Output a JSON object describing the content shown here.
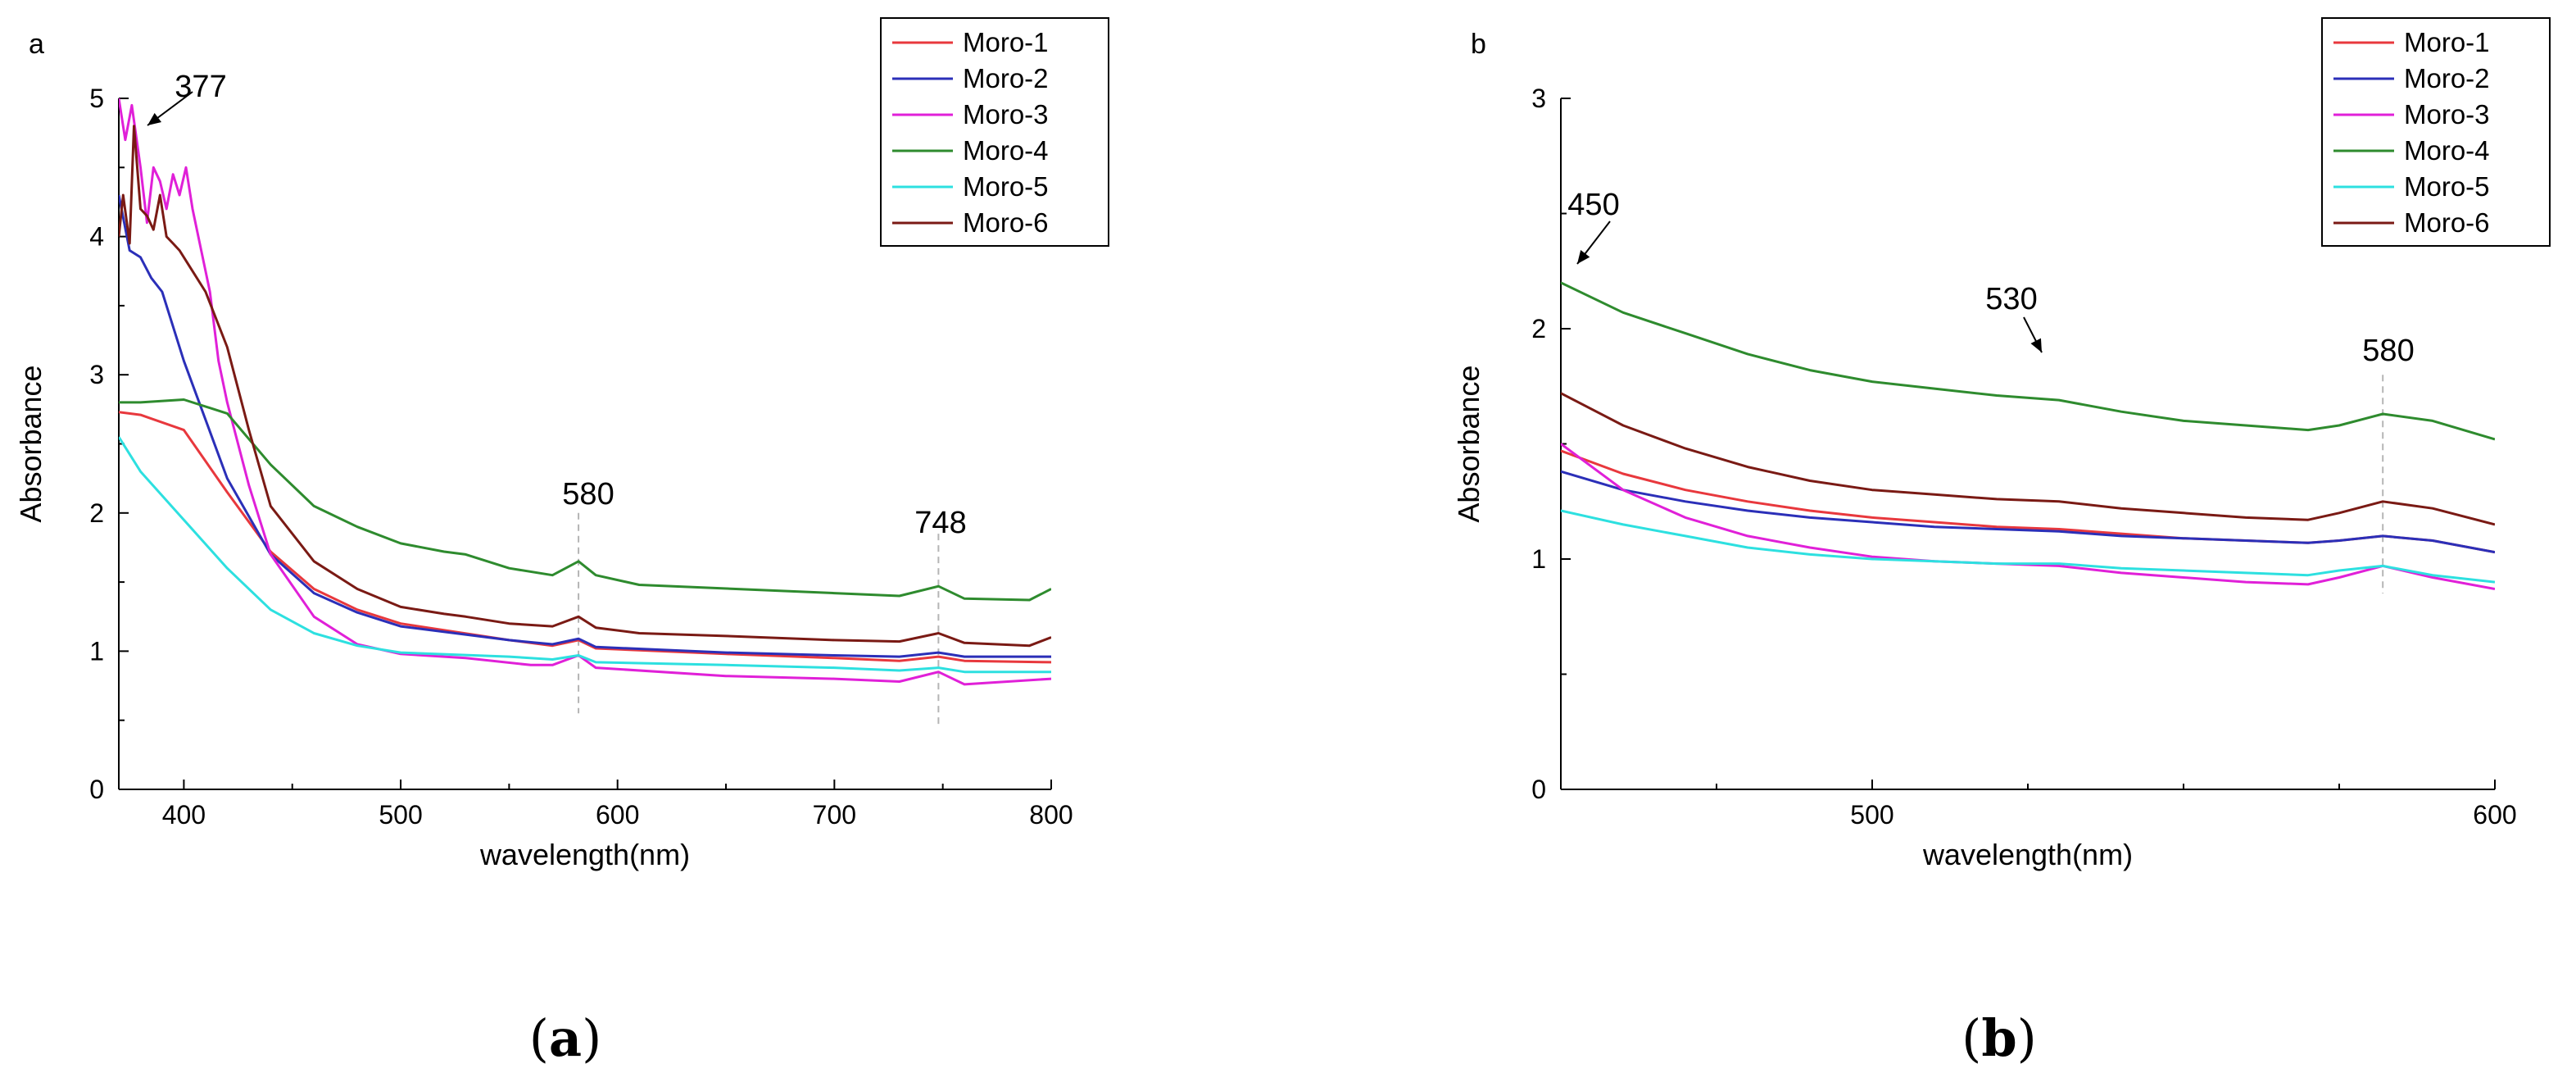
{
  "chart_data": [
    {
      "type": "line",
      "panel_label": "a",
      "caption": {
        "open": "(",
        "letter": "a",
        "close": ")"
      },
      "xlabel": "wavelength(nm)",
      "ylabel": "Absorbance",
      "xlim": [
        370,
        800
      ],
      "ylim": [
        0,
        5
      ],
      "xticks": [
        400,
        500,
        600,
        700,
        800
      ],
      "yticks": [
        0,
        1,
        2,
        3,
        4,
        5
      ],
      "legend_position": "top-right",
      "series": [
        {
          "name": "Moro-1",
          "color": "#e8383d",
          "x": [
            370,
            380,
            400,
            420,
            440,
            460,
            480,
            500,
            550,
            570,
            582,
            590,
            650,
            700,
            730,
            748,
            760,
            800
          ],
          "y": [
            2.73,
            2.71,
            2.6,
            2.15,
            1.72,
            1.45,
            1.3,
            1.2,
            1.08,
            1.04,
            1.08,
            1.02,
            0.98,
            0.95,
            0.93,
            0.96,
            0.93,
            0.92
          ]
        },
        {
          "name": "Moro-2",
          "color": "#2b2fb8",
          "x": [
            370,
            375,
            380,
            385,
            390,
            400,
            420,
            440,
            460,
            480,
            500,
            550,
            570,
            582,
            590,
            650,
            700,
            730,
            748,
            760,
            800
          ],
          "y": [
            4.3,
            3.9,
            3.85,
            3.7,
            3.6,
            3.1,
            2.25,
            1.7,
            1.42,
            1.28,
            1.18,
            1.08,
            1.05,
            1.09,
            1.03,
            0.99,
            0.97,
            0.96,
            0.99,
            0.96,
            0.96
          ]
        },
        {
          "name": "Moro-3",
          "color": "#e020d8",
          "x": [
            370,
            373,
            376,
            380,
            383,
            386,
            389,
            392,
            395,
            398,
            401,
            404,
            408,
            412,
            416,
            420,
            430,
            440,
            460,
            480,
            500,
            530,
            560,
            570,
            582,
            590,
            650,
            700,
            730,
            748,
            760,
            800
          ],
          "y": [
            5.0,
            4.7,
            4.95,
            4.5,
            4.1,
            4.5,
            4.4,
            4.2,
            4.45,
            4.3,
            4.5,
            4.2,
            3.9,
            3.6,
            3.1,
            2.8,
            2.2,
            1.7,
            1.25,
            1.05,
            0.98,
            0.95,
            0.9,
            0.9,
            0.97,
            0.88,
            0.82,
            0.8,
            0.78,
            0.85,
            0.76,
            0.8
          ]
        },
        {
          "name": "Moro-4",
          "color": "#2e8b2e",
          "x": [
            370,
            380,
            400,
            420,
            440,
            460,
            480,
            500,
            520,
            530,
            550,
            570,
            582,
            590,
            610,
            700,
            730,
            748,
            760,
            790,
            800
          ],
          "y": [
            2.8,
            2.8,
            2.82,
            2.72,
            2.35,
            2.05,
            1.9,
            1.78,
            1.72,
            1.7,
            1.6,
            1.55,
            1.65,
            1.55,
            1.48,
            1.42,
            1.4,
            1.47,
            1.38,
            1.37,
            1.45
          ]
        },
        {
          "name": "Moro-5",
          "color": "#2de0e0",
          "x": [
            370,
            380,
            400,
            420,
            440,
            460,
            480,
            500,
            550,
            570,
            582,
            590,
            650,
            700,
            730,
            748,
            760,
            800
          ],
          "y": [
            2.55,
            2.3,
            1.95,
            1.6,
            1.3,
            1.13,
            1.04,
            0.99,
            0.96,
            0.94,
            0.97,
            0.92,
            0.9,
            0.88,
            0.86,
            0.88,
            0.85,
            0.85
          ]
        },
        {
          "name": "Moro-6",
          "color": "#7a1a14",
          "x": [
            370,
            372,
            375,
            377,
            380,
            383,
            386,
            389,
            392,
            395,
            398,
            402,
            410,
            420,
            430,
            440,
            460,
            480,
            500,
            520,
            530,
            550,
            570,
            582,
            590,
            610,
            650,
            700,
            730,
            748,
            760,
            790,
            800
          ],
          "y": [
            4.0,
            4.3,
            3.95,
            4.8,
            4.2,
            4.15,
            4.05,
            4.3,
            4.0,
            3.95,
            3.9,
            3.8,
            3.6,
            3.2,
            2.6,
            2.05,
            1.65,
            1.45,
            1.32,
            1.27,
            1.25,
            1.2,
            1.18,
            1.25,
            1.17,
            1.13,
            1.11,
            1.08,
            1.07,
            1.13,
            1.06,
            1.04,
            1.1
          ]
        }
      ],
      "annotations": [
        {
          "text": "377",
          "x": 377,
          "y": 4.8,
          "kind": "arrow"
        },
        {
          "text": "580",
          "x": 582,
          "kind": "dashed-line",
          "y_range": [
            0.55,
            2.0
          ]
        },
        {
          "text": "748",
          "x": 748,
          "kind": "dashed-line",
          "y_range": [
            0.45,
            1.85
          ]
        }
      ]
    },
    {
      "type": "line",
      "panel_label": "b",
      "caption": {
        "open": "(",
        "letter": "b",
        "close": ")"
      },
      "xlabel": "wavelength(nm)",
      "ylabel": "Absorbance",
      "xlim": [
        450,
        600
      ],
      "ylim": [
        0,
        3
      ],
      "xticks": [
        500,
        600
      ],
      "xticks_minor": [
        475,
        525,
        550,
        575
      ],
      "yticks": [
        0,
        1,
        2,
        3
      ],
      "legend_position": "top-right",
      "series": [
        {
          "name": "Moro-1",
          "color": "#e8383d",
          "x": [
            450,
            460,
            470,
            480,
            490,
            500,
            510,
            520,
            530,
            540,
            550,
            560,
            570,
            575,
            582,
            590,
            600
          ],
          "y": [
            1.47,
            1.37,
            1.3,
            1.25,
            1.21,
            1.18,
            1.16,
            1.14,
            1.13,
            1.11,
            1.09,
            1.08,
            1.07,
            1.08,
            1.1,
            1.08,
            1.03
          ]
        },
        {
          "name": "Moro-2",
          "color": "#2b2fb8",
          "x": [
            450,
            460,
            470,
            480,
            490,
            500,
            510,
            520,
            530,
            540,
            550,
            560,
            570,
            575,
            582,
            590,
            600
          ],
          "y": [
            1.38,
            1.3,
            1.25,
            1.21,
            1.18,
            1.16,
            1.14,
            1.13,
            1.12,
            1.1,
            1.09,
            1.08,
            1.07,
            1.08,
            1.1,
            1.08,
            1.03
          ]
        },
        {
          "name": "Moro-3",
          "color": "#e020d8",
          "x": [
            450,
            460,
            470,
            480,
            490,
            500,
            510,
            520,
            530,
            540,
            550,
            560,
            570,
            575,
            582,
            590,
            600
          ],
          "y": [
            1.5,
            1.3,
            1.18,
            1.1,
            1.05,
            1.01,
            0.99,
            0.98,
            0.97,
            0.94,
            0.92,
            0.9,
            0.89,
            0.92,
            0.97,
            0.92,
            0.87
          ]
        },
        {
          "name": "Moro-4",
          "color": "#2e8b2e",
          "x": [
            450,
            460,
            470,
            480,
            490,
            500,
            510,
            520,
            530,
            540,
            550,
            560,
            570,
            575,
            582,
            590,
            600
          ],
          "y": [
            2.2,
            2.07,
            1.98,
            1.89,
            1.82,
            1.77,
            1.74,
            1.71,
            1.69,
            1.64,
            1.6,
            1.58,
            1.56,
            1.58,
            1.63,
            1.6,
            1.52
          ]
        },
        {
          "name": "Moro-5",
          "color": "#2de0e0",
          "x": [
            450,
            460,
            470,
            480,
            490,
            500,
            510,
            520,
            530,
            540,
            550,
            560,
            570,
            575,
            582,
            590,
            600
          ],
          "y": [
            1.21,
            1.15,
            1.1,
            1.05,
            1.02,
            1.0,
            0.99,
            0.98,
            0.98,
            0.96,
            0.95,
            0.94,
            0.93,
            0.95,
            0.97,
            0.93,
            0.9
          ]
        },
        {
          "name": "Moro-6",
          "color": "#7a1a14",
          "x": [
            450,
            460,
            470,
            480,
            490,
            500,
            510,
            520,
            530,
            540,
            550,
            560,
            570,
            575,
            582,
            590,
            600
          ],
          "y": [
            1.72,
            1.58,
            1.48,
            1.4,
            1.34,
            1.3,
            1.28,
            1.26,
            1.25,
            1.22,
            1.2,
            1.18,
            1.17,
            1.2,
            1.25,
            1.22,
            1.15
          ]
        }
      ],
      "annotations": [
        {
          "text": "450",
          "x": 452,
          "y": 2.25,
          "kind": "arrow"
        },
        {
          "text": "530",
          "x": 530,
          "y": 1.72,
          "kind": "arrow"
        },
        {
          "text": "580",
          "x": 582,
          "kind": "dashed-line",
          "y_range": [
            0.85,
            1.8
          ]
        }
      ]
    }
  ]
}
